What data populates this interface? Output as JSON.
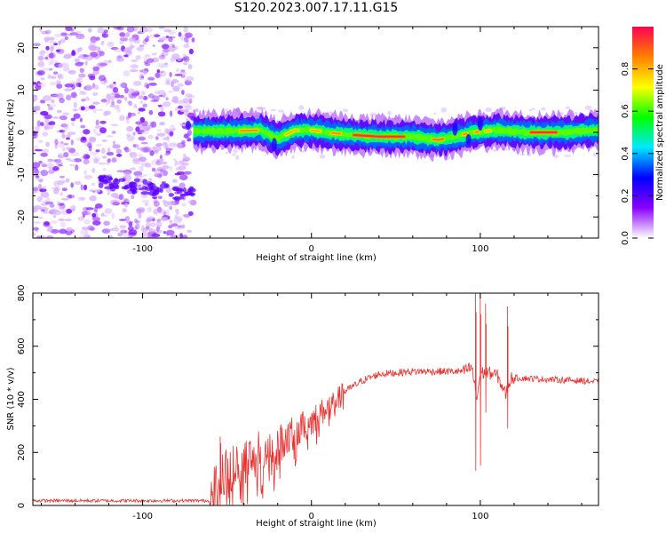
{
  "title": "S120.2023.007.17.11.G15",
  "colors": {
    "axis": "#000000",
    "snr_line": "#e8322f"
  },
  "chart_data": [
    {
      "type": "heatmap",
      "xlabel": "Height of straight line (km)",
      "ylabel": "Frequency (Hz)",
      "xlim": [
        -165,
        170
      ],
      "ylim": [
        -25,
        25
      ],
      "xticks": [
        -100,
        0,
        100
      ],
      "yticks": [
        -20,
        -10,
        0,
        10,
        20
      ],
      "colorbar": {
        "label": "Normalized spectral amplitude",
        "range": [
          0,
          1
        ],
        "ticks": [
          0.0,
          0.2,
          0.4,
          0.6,
          0.8
        ],
        "tick_labels": [
          "0.0",
          "0.2",
          "0.4",
          "0.6",
          "0.8"
        ],
        "colormap": [
          "#ffffff",
          "#8a00ff",
          "#0000ff",
          "#00e8ff",
          "#00ff00",
          "#ffff00",
          "#ff8000",
          "#ff0050"
        ]
      },
      "ridge": {
        "x": [
          -70,
          -50,
          -30,
          -20,
          -10,
          0,
          20,
          40,
          60,
          75,
          85,
          95,
          110,
          130,
          150,
          170
        ],
        "freq_hz": [
          0.3,
          0.3,
          0.5,
          -1.5,
          0.5,
          0.5,
          -0.5,
          -1,
          -1,
          -1.8,
          -1,
          0,
          0.5,
          0,
          0,
          0.5
        ]
      },
      "noise_region": {
        "x_from": -165,
        "x_to": -70
      }
    },
    {
      "type": "line",
      "xlabel": "Height of straight line (km)",
      "ylabel": "SNR (10 * v/v)",
      "xlim": [
        -165,
        170
      ],
      "ylim": [
        0,
        800
      ],
      "xticks": [
        -100,
        0,
        100
      ],
      "yticks": [
        0,
        200,
        400,
        600,
        800
      ],
      "envelope": {
        "x": [
          -165,
          -60,
          -55,
          -50,
          -40,
          -30,
          -20,
          -10,
          0,
          10,
          20,
          30,
          40,
          60,
          80,
          90,
          95,
          98,
          100,
          105,
          110,
          115,
          118,
          125,
          140,
          160,
          170
        ],
        "y": [
          18,
          18,
          80,
          120,
          170,
          200,
          230,
          270,
          320,
          370,
          430,
          470,
          495,
          505,
          505,
          505,
          520,
          400,
          500,
          500,
          490,
          420,
          480,
          480,
          475,
          470,
          465
        ]
      },
      "spikes": [
        {
          "x": 97,
          "low": 130,
          "high": 810
        },
        {
          "x": 100,
          "low": 150,
          "high": 800
        },
        {
          "x": 103,
          "low": 350,
          "high": 760
        },
        {
          "x": 116,
          "low": 290,
          "high": 750
        },
        {
          "x": -54,
          "low": 40,
          "high": 260
        }
      ]
    }
  ]
}
